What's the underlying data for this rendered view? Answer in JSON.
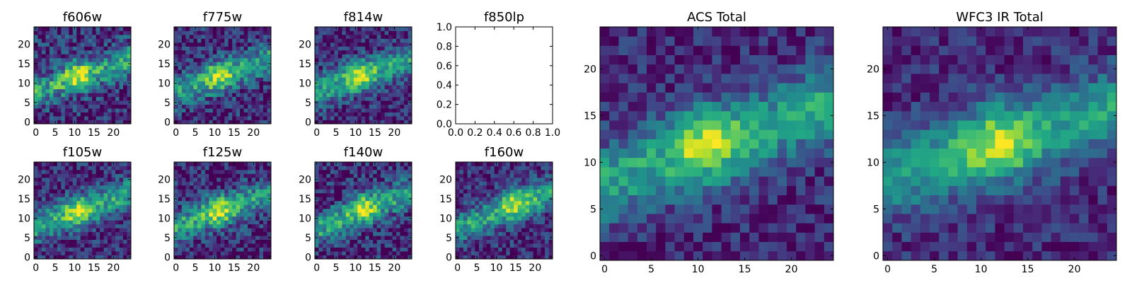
{
  "chart_data": {
    "type": "heatmap",
    "colormap": "viridis",
    "panels": [
      {
        "title": "f606w",
        "grid": 25,
        "xticks": [
          "0",
          "5",
          "10",
          "15",
          "20"
        ],
        "yticks": [
          "0",
          "5",
          "10",
          "15",
          "20"
        ],
        "seed": 11,
        "noise": 0.5,
        "blob": [
          11,
          12
        ],
        "band_slope": 0.35
      },
      {
        "title": "f775w",
        "grid": 25,
        "xticks": [
          "0",
          "5",
          "10",
          "15",
          "20"
        ],
        "yticks": [
          "0",
          "5",
          "10",
          "15",
          "20"
        ],
        "seed": 23,
        "noise": 0.45,
        "blob": [
          11,
          12
        ],
        "band_slope": 0.35
      },
      {
        "title": "f814w",
        "grid": 25,
        "xticks": [
          "0",
          "5",
          "10",
          "15",
          "20"
        ],
        "yticks": [
          "0",
          "5",
          "10",
          "15",
          "20"
        ],
        "seed": 37,
        "noise": 0.4,
        "blob": [
          11,
          12
        ],
        "band_slope": 0.35
      },
      {
        "title": "f850lp",
        "empty": true,
        "xticks": [
          "0.0",
          "0.2",
          "0.4",
          "0.6",
          "0.8",
          "1.0"
        ],
        "yticks": [
          "0.0",
          "0.2",
          "0.4",
          "0.6",
          "0.8",
          "1.0"
        ]
      },
      {
        "title": "f105w",
        "grid": 25,
        "xticks": [
          "0",
          "5",
          "10",
          "15",
          "20"
        ],
        "yticks": [
          "0",
          "5",
          "10",
          "15",
          "20"
        ],
        "seed": 41,
        "noise": 0.4,
        "blob": [
          11,
          12
        ],
        "band_slope": 0.35
      },
      {
        "title": "f125w",
        "grid": 25,
        "xticks": [
          "0",
          "5",
          "10",
          "15",
          "20"
        ],
        "yticks": [
          "0",
          "5",
          "10",
          "15",
          "20"
        ],
        "seed": 53,
        "noise": 0.45,
        "blob": [
          11,
          12
        ],
        "band_slope": 0.35
      },
      {
        "title": "f140w",
        "grid": 25,
        "xticks": [
          "0",
          "5",
          "10",
          "15",
          "20"
        ],
        "yticks": [
          "0",
          "5",
          "10",
          "15",
          "20"
        ],
        "seed": 67,
        "noise": 0.45,
        "blob": [
          12,
          13
        ],
        "band_slope": 0.4
      },
      {
        "title": "f160w",
        "grid": 25,
        "xticks": [
          "0",
          "5",
          "10",
          "15",
          "20"
        ],
        "yticks": [
          "0",
          "5",
          "10",
          "15",
          "20"
        ],
        "seed": 79,
        "noise": 0.4,
        "blob": [
          15,
          14
        ],
        "band_slope": 0.4
      },
      {
        "title": "ACS Total",
        "grid": 25,
        "xticks": [
          "0",
          "5",
          "10",
          "15",
          "20"
        ],
        "yticks": [
          "0",
          "5",
          "10",
          "15",
          "20"
        ],
        "seed": 97,
        "noise": 0.3,
        "blob": [
          11,
          12
        ],
        "band_slope": 0.35
      },
      {
        "title": "WFC3 IR Total",
        "grid": 25,
        "xticks": [
          "0",
          "5",
          "10",
          "15",
          "20"
        ],
        "yticks": [
          "0",
          "5",
          "10",
          "15",
          "20"
        ],
        "seed": 101,
        "noise": 0.28,
        "blob": [
          12,
          12
        ],
        "band_slope": 0.3
      }
    ]
  }
}
